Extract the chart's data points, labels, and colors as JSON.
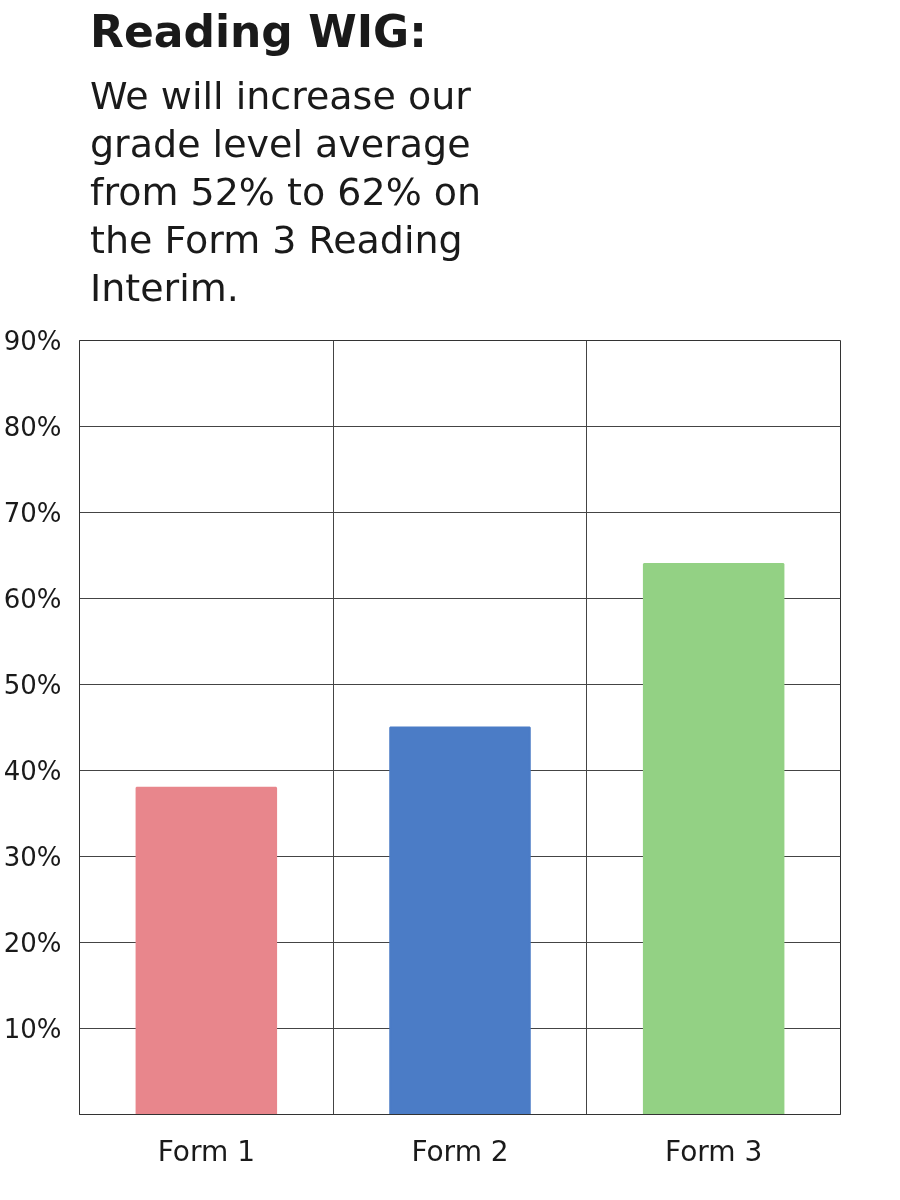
{
  "chart_data": {
    "type": "bar",
    "title": "Reading WIG:",
    "subtitle": "We will increase our grade level average from 52% to 62% on the Form 3 Reading Interim.",
    "categories": [
      "Form 1",
      "Form 2",
      "Form 3"
    ],
    "values": [
      38,
      45,
      64
    ],
    "colors": [
      "#e8868c",
      "#4b7cc6",
      "#93d184"
    ],
    "ylim": [
      0,
      90
    ],
    "yticks": [
      {
        "value": 10,
        "label": "10%"
      },
      {
        "value": 20,
        "label": "20%"
      },
      {
        "value": 30,
        "label": "30%"
      },
      {
        "value": 40,
        "label": "40%"
      },
      {
        "value": 50,
        "label": "50%"
      },
      {
        "value": 60,
        "label": "60%"
      },
      {
        "value": 70,
        "label": "70%"
      },
      {
        "value": 80,
        "label": "80%"
      },
      {
        "value": 90,
        "label": "90%"
      }
    ],
    "grid": true
  }
}
